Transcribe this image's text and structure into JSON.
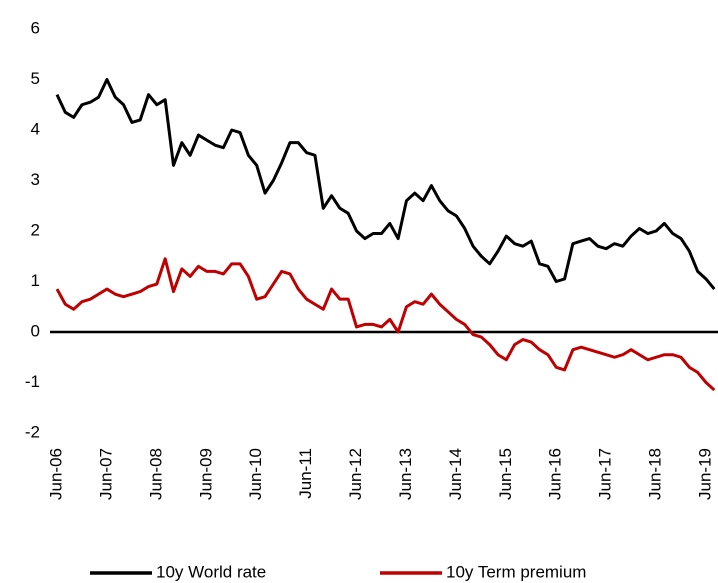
{
  "chart_data": {
    "type": "line",
    "categories": [
      "Jun-06",
      null,
      null,
      null,
      null,
      null,
      "Jun-07",
      null,
      null,
      null,
      null,
      null,
      "Jun-08",
      null,
      null,
      null,
      null,
      null,
      "Jun-09",
      null,
      null,
      null,
      null,
      null,
      "Jun-10",
      null,
      null,
      null,
      null,
      null,
      "Jun-11",
      null,
      null,
      null,
      null,
      null,
      "Jun-12",
      null,
      null,
      null,
      null,
      null,
      "Jun-13",
      null,
      null,
      null,
      null,
      null,
      "Jun-14",
      null,
      null,
      null,
      null,
      null,
      "Jun-15",
      null,
      null,
      null,
      null,
      null,
      "Jun-16",
      null,
      null,
      null,
      null,
      null,
      "Jun-17",
      null,
      null,
      null,
      null,
      null,
      "Jun-18",
      null,
      null,
      null,
      null,
      null,
      "Jun-19",
      null
    ],
    "series": [
      {
        "name": "10y World rate",
        "color": "#000000",
        "values": [
          4.7,
          4.35,
          4.25,
          4.5,
          4.55,
          4.65,
          5.0,
          4.65,
          4.5,
          4.15,
          4.2,
          4.7,
          4.5,
          4.6,
          3.3,
          3.75,
          3.5,
          3.9,
          3.8,
          3.7,
          3.65,
          4.0,
          3.95,
          3.5,
          3.3,
          2.75,
          3.0,
          3.35,
          3.75,
          3.75,
          3.55,
          3.5,
          2.45,
          2.7,
          2.45,
          2.35,
          2.0,
          1.85,
          1.95,
          1.95,
          2.15,
          1.85,
          2.6,
          2.75,
          2.6,
          2.9,
          2.6,
          2.4,
          2.3,
          2.05,
          1.7,
          1.5,
          1.35,
          1.6,
          1.9,
          1.75,
          1.7,
          1.8,
          1.35,
          1.3,
          1.0,
          1.05,
          1.75,
          1.8,
          1.85,
          1.7,
          1.65,
          1.75,
          1.7,
          1.9,
          2.05,
          1.95,
          2.0,
          2.15,
          1.95,
          1.85,
          1.6,
          1.2,
          1.05,
          0.85
        ]
      },
      {
        "name": "10y Term premium",
        "color": "#c00000",
        "values": [
          0.85,
          0.55,
          0.45,
          0.6,
          0.65,
          0.75,
          0.85,
          0.75,
          0.7,
          0.75,
          0.8,
          0.9,
          0.95,
          1.45,
          0.8,
          1.25,
          1.1,
          1.3,
          1.2,
          1.2,
          1.15,
          1.35,
          1.35,
          1.1,
          0.65,
          0.7,
          0.95,
          1.2,
          1.15,
          0.85,
          0.65,
          0.55,
          0.45,
          0.85,
          0.65,
          0.65,
          0.1,
          0.15,
          0.15,
          0.1,
          0.25,
          0.0,
          0.5,
          0.6,
          0.55,
          0.75,
          0.55,
          0.4,
          0.25,
          0.15,
          -0.05,
          -0.1,
          -0.25,
          -0.45,
          -0.55,
          -0.25,
          -0.15,
          -0.2,
          -0.35,
          -0.45,
          -0.7,
          -0.75,
          -0.35,
          -0.3,
          -0.35,
          -0.4,
          -0.45,
          -0.5,
          -0.45,
          -0.35,
          -0.45,
          -0.55,
          -0.5,
          -0.45,
          -0.45,
          -0.5,
          -0.7,
          -0.8,
          -1.0,
          -1.15
        ]
      }
    ],
    "ylim": [
      -2,
      6
    ],
    "yticks": [
      -2,
      -1,
      0,
      1,
      2,
      3,
      4,
      5,
      6
    ],
    "grid": false,
    "legend": "bottom"
  }
}
